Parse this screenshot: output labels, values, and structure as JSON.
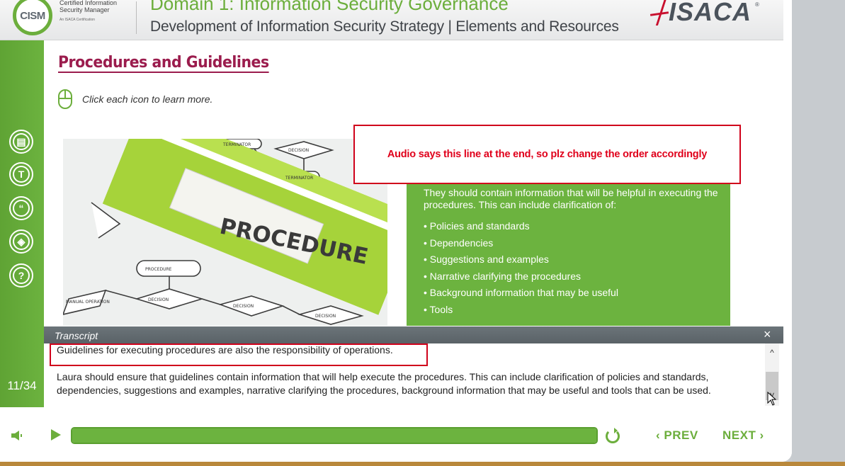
{
  "header": {
    "logo_text": "CISM",
    "tagline_line1": "Certified Information",
    "tagline_line2": "Security Manager",
    "tagline_small": "An ISACA Certification",
    "domain_title": "Domain 1: Information Security Governance",
    "subtitle": "Development of Information Security Strategy | Elements and Resources",
    "brand_logo_text": "ISACA",
    "brand_reg": "®"
  },
  "sidebar": {
    "icons": [
      {
        "name": "resources-icon",
        "glyph": "▤"
      },
      {
        "name": "glossary-icon",
        "glyph": "T"
      },
      {
        "name": "quote-icon",
        "glyph": "“"
      },
      {
        "name": "layers-icon",
        "glyph": "◈"
      },
      {
        "name": "help-icon",
        "glyph": "?"
      }
    ],
    "page_counter": "11/34"
  },
  "content": {
    "page_title": "Procedures and Guidelines",
    "instruction": "Click each icon to learn more.",
    "photo_label": "PROCEDURE",
    "flow_labels": [
      "PROCEDURE",
      "DECISION",
      "DECISION",
      "DECISION",
      "MANUAL OPERATION",
      "TERMINATOR",
      "TERMINATOR",
      "DECISION"
    ],
    "info_intro": "They should contain information that will be helpful in executing the procedures. This can include clarification of:",
    "info_items": [
      "Policies and standards",
      "Dependencies",
      "Suggestions and examples",
      "Narrative clarifying the procedures",
      "Background information that may be useful",
      "Tools"
    ],
    "annotation": "Audio says this line at the end, so plz change the order accordingly"
  },
  "transcript": {
    "title": "Transcript",
    "close": "×",
    "line1": "Guidelines for executing procedures are also the responsibility of operations.",
    "line2": "Laura should ensure that guidelines contain information that will help execute the procedures. This can include clarification of policies and standards, dependencies, suggestions and examples, narrative clarifying the procedures, background information that may be useful and tools that can be used.",
    "scroll_up": "^",
    "scroll_down": "˅"
  },
  "controls": {
    "progress_fraction": 1.0,
    "prev_label": "‹ PREV",
    "next_label": "NEXT ›"
  },
  "colors": {
    "brand_green": "#6cb33f",
    "title_maroon": "#9b1c4d",
    "annotation_red": "#d0021b"
  }
}
